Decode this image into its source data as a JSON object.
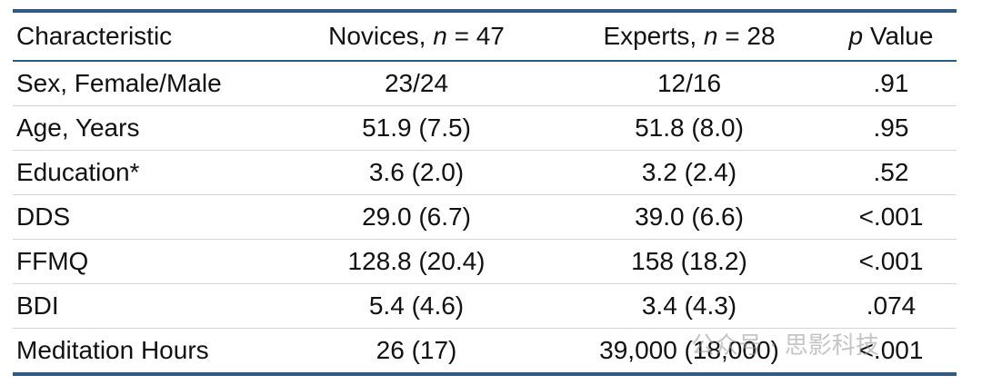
{
  "table": {
    "header": [
      [
        "Characteristic"
      ],
      [
        "Novices, ",
        "n",
        " = 47"
      ],
      [
        "Experts, ",
        "n",
        " = 28"
      ],
      [
        "p",
        " Value"
      ]
    ],
    "rows": [
      [
        "Sex, Female/Male",
        "23/24",
        "12/16",
        ".91"
      ],
      [
        "Age, Years",
        "51.9 (7.5)",
        "51.8 (8.0)",
        ".95"
      ],
      [
        "Education*",
        "3.6 (2.0)",
        "3.2 (2.4)",
        ".52"
      ],
      [
        "DDS",
        "29.0 (6.7)",
        "39.0 (6.6)",
        "<.001"
      ],
      [
        "FFMQ",
        "128.8 (20.4)",
        "158 (18.2)",
        "<.001"
      ],
      [
        "BDI",
        "5.4 (4.6)",
        "3.4 (4.3)",
        ".074"
      ],
      [
        "Meditation Hours",
        "26 (17)",
        "39,000 (18,000)",
        "<.001"
      ]
    ]
  },
  "watermark": "公众号 · 思影科技"
}
